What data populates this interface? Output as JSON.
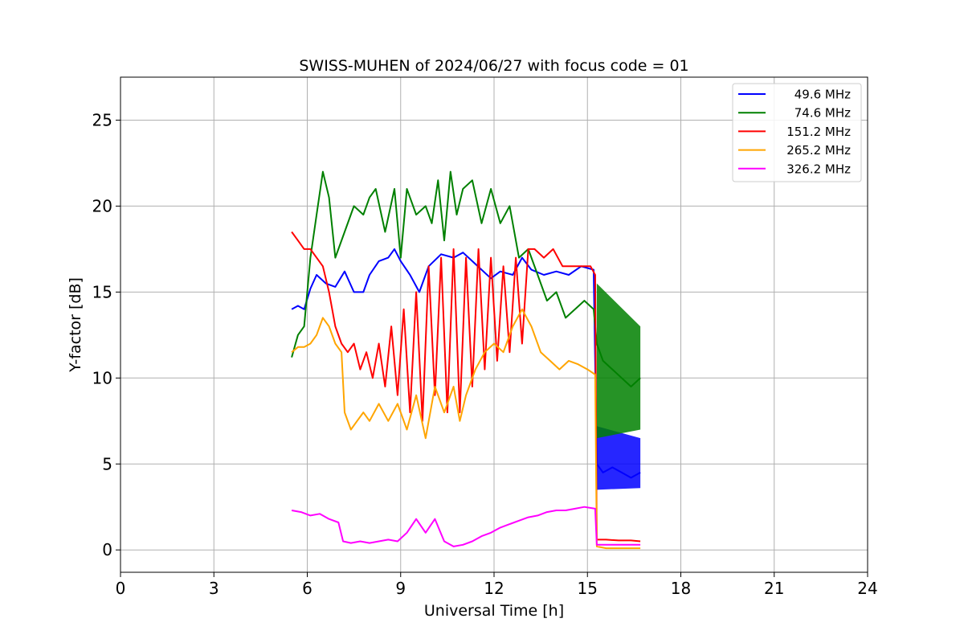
{
  "chart_data": {
    "type": "line",
    "title": "SWISS-MUHEN of 2024/06/27 with focus code = 01",
    "xlabel": "Universal Time [h]",
    "ylabel": "Y-factor [dB]",
    "xlim": [
      0,
      24
    ],
    "ylim": [
      -1.3,
      27.5
    ],
    "xticks": [
      0,
      3,
      6,
      9,
      12,
      15,
      18,
      21,
      24
    ],
    "yticks": [
      0,
      5,
      10,
      15,
      20,
      25
    ],
    "grid": true,
    "legend_position": "top-right",
    "series": [
      {
        "name": "49.6 MHz",
        "color": "#0000ff",
        "points": [
          [
            5.5,
            14.0
          ],
          [
            5.7,
            14.2
          ],
          [
            5.9,
            14.0
          ],
          [
            6.1,
            15.2
          ],
          [
            6.3,
            16.0
          ],
          [
            6.6,
            15.5
          ],
          [
            6.9,
            15.3
          ],
          [
            7.2,
            16.2
          ],
          [
            7.5,
            15.0
          ],
          [
            7.8,
            15.0
          ],
          [
            8.0,
            16.0
          ],
          [
            8.3,
            16.8
          ],
          [
            8.6,
            17.0
          ],
          [
            8.8,
            17.5
          ],
          [
            9.0,
            16.8
          ],
          [
            9.3,
            16.0
          ],
          [
            9.6,
            15.0
          ],
          [
            9.9,
            16.5
          ],
          [
            10.3,
            17.2
          ],
          [
            10.7,
            17.0
          ],
          [
            11.0,
            17.3
          ],
          [
            11.3,
            16.8
          ],
          [
            11.6,
            16.3
          ],
          [
            11.9,
            15.8
          ],
          [
            12.2,
            16.2
          ],
          [
            12.6,
            16.0
          ],
          [
            12.9,
            17.0
          ],
          [
            13.2,
            16.3
          ],
          [
            13.6,
            16.0
          ],
          [
            14.0,
            16.2
          ],
          [
            14.4,
            16.0
          ],
          [
            14.8,
            16.5
          ],
          [
            15.2,
            16.3
          ],
          [
            15.3,
            5.0
          ],
          [
            15.5,
            4.5
          ],
          [
            15.8,
            4.8
          ],
          [
            16.1,
            4.5
          ],
          [
            16.4,
            4.2
          ],
          [
            16.7,
            4.5
          ]
        ],
        "band_bottom": [
          [
            15.3,
            3.5
          ],
          [
            16.7,
            3.6
          ]
        ],
        "band_top": [
          [
            15.3,
            7.2
          ],
          [
            16.7,
            6.5
          ]
        ]
      },
      {
        "name": "74.6 MHz",
        "color": "#008000",
        "points": [
          [
            5.5,
            11.2
          ],
          [
            5.7,
            12.5
          ],
          [
            5.9,
            13.0
          ],
          [
            6.1,
            17.0
          ],
          [
            6.3,
            19.5
          ],
          [
            6.5,
            22.0
          ],
          [
            6.7,
            20.5
          ],
          [
            6.9,
            17.0
          ],
          [
            7.2,
            18.5
          ],
          [
            7.5,
            20.0
          ],
          [
            7.8,
            19.5
          ],
          [
            8.0,
            20.5
          ],
          [
            8.2,
            21.0
          ],
          [
            8.5,
            18.5
          ],
          [
            8.8,
            21.0
          ],
          [
            9.0,
            17.0
          ],
          [
            9.2,
            21.0
          ],
          [
            9.5,
            19.5
          ],
          [
            9.8,
            20.0
          ],
          [
            10.0,
            19.0
          ],
          [
            10.2,
            21.5
          ],
          [
            10.4,
            18.0
          ],
          [
            10.6,
            22.0
          ],
          [
            10.8,
            19.5
          ],
          [
            11.0,
            21.0
          ],
          [
            11.3,
            21.5
          ],
          [
            11.6,
            19.0
          ],
          [
            11.9,
            21.0
          ],
          [
            12.2,
            19.0
          ],
          [
            12.5,
            20.0
          ],
          [
            12.8,
            17.0
          ],
          [
            13.1,
            17.5
          ],
          [
            13.4,
            16.0
          ],
          [
            13.7,
            14.5
          ],
          [
            14.0,
            15.0
          ],
          [
            14.3,
            13.5
          ],
          [
            14.6,
            14.0
          ],
          [
            14.9,
            14.5
          ],
          [
            15.2,
            14.0
          ],
          [
            15.3,
            12.0
          ],
          [
            15.5,
            11.0
          ],
          [
            15.8,
            10.5
          ],
          [
            16.1,
            10.0
          ],
          [
            16.4,
            9.5
          ],
          [
            16.7,
            10.0
          ]
        ],
        "band_bottom": [
          [
            15.3,
            6.5
          ],
          [
            16.7,
            7.0
          ]
        ],
        "band_top": [
          [
            15.3,
            15.5
          ],
          [
            16.7,
            13.0
          ]
        ]
      },
      {
        "name": "151.2 MHz",
        "color": "#ff0000",
        "points": [
          [
            5.5,
            18.5
          ],
          [
            5.7,
            18.0
          ],
          [
            5.9,
            17.5
          ],
          [
            6.1,
            17.5
          ],
          [
            6.3,
            17.0
          ],
          [
            6.5,
            16.5
          ],
          [
            6.7,
            15.0
          ],
          [
            6.9,
            13.0
          ],
          [
            7.1,
            12.0
          ],
          [
            7.3,
            11.5
          ],
          [
            7.5,
            12.0
          ],
          [
            7.7,
            10.5
          ],
          [
            7.9,
            11.5
          ],
          [
            8.1,
            10.0
          ],
          [
            8.3,
            12.0
          ],
          [
            8.5,
            9.5
          ],
          [
            8.7,
            13.0
          ],
          [
            8.9,
            9.0
          ],
          [
            9.1,
            14.0
          ],
          [
            9.3,
            8.0
          ],
          [
            9.5,
            15.0
          ],
          [
            9.7,
            7.5
          ],
          [
            9.9,
            16.5
          ],
          [
            10.1,
            9.0
          ],
          [
            10.3,
            17.0
          ],
          [
            10.5,
            8.0
          ],
          [
            10.7,
            17.5
          ],
          [
            10.9,
            8.0
          ],
          [
            11.1,
            17.0
          ],
          [
            11.3,
            9.5
          ],
          [
            11.5,
            17.5
          ],
          [
            11.7,
            10.5
          ],
          [
            11.9,
            17.0
          ],
          [
            12.1,
            11.0
          ],
          [
            12.3,
            16.5
          ],
          [
            12.5,
            11.5
          ],
          [
            12.7,
            17.0
          ],
          [
            12.9,
            12.0
          ],
          [
            13.1,
            17.5
          ],
          [
            13.3,
            17.5
          ],
          [
            13.6,
            17.0
          ],
          [
            13.9,
            17.5
          ],
          [
            14.2,
            16.5
          ],
          [
            14.5,
            16.5
          ],
          [
            14.8,
            16.5
          ],
          [
            15.1,
            16.5
          ],
          [
            15.25,
            16.0
          ],
          [
            15.3,
            0.6
          ],
          [
            15.6,
            0.6
          ],
          [
            16.0,
            0.55
          ],
          [
            16.4,
            0.55
          ],
          [
            16.7,
            0.5
          ]
        ]
      },
      {
        "name": "265.2 MHz",
        "color": "#ffa500",
        "points": [
          [
            5.5,
            11.5
          ],
          [
            5.7,
            11.8
          ],
          [
            5.9,
            11.8
          ],
          [
            6.1,
            12.0
          ],
          [
            6.3,
            12.5
          ],
          [
            6.5,
            13.5
          ],
          [
            6.7,
            13.0
          ],
          [
            6.9,
            12.0
          ],
          [
            7.1,
            11.5
          ],
          [
            7.2,
            8.0
          ],
          [
            7.4,
            7.0
          ],
          [
            7.6,
            7.5
          ],
          [
            7.8,
            8.0
          ],
          [
            8.0,
            7.5
          ],
          [
            8.3,
            8.5
          ],
          [
            8.6,
            7.5
          ],
          [
            8.9,
            8.5
          ],
          [
            9.2,
            7.0
          ],
          [
            9.5,
            9.0
          ],
          [
            9.8,
            6.5
          ],
          [
            10.1,
            9.5
          ],
          [
            10.4,
            8.0
          ],
          [
            10.7,
            9.5
          ],
          [
            10.9,
            7.5
          ],
          [
            11.1,
            9.0
          ],
          [
            11.4,
            10.5
          ],
          [
            11.7,
            11.5
          ],
          [
            12.0,
            12.0
          ],
          [
            12.3,
            11.5
          ],
          [
            12.6,
            13.0
          ],
          [
            12.9,
            14.0
          ],
          [
            13.2,
            13.0
          ],
          [
            13.5,
            11.5
          ],
          [
            13.8,
            11.0
          ],
          [
            14.1,
            10.5
          ],
          [
            14.4,
            11.0
          ],
          [
            14.7,
            10.8
          ],
          [
            15.0,
            10.5
          ],
          [
            15.25,
            10.2
          ],
          [
            15.3,
            0.2
          ],
          [
            15.6,
            0.1
          ],
          [
            16.0,
            0.1
          ],
          [
            16.4,
            0.1
          ],
          [
            16.7,
            0.1
          ]
        ]
      },
      {
        "name": "326.2 MHz",
        "color": "#ff00ff",
        "points": [
          [
            5.5,
            2.3
          ],
          [
            5.8,
            2.2
          ],
          [
            6.1,
            2.0
          ],
          [
            6.4,
            2.1
          ],
          [
            6.7,
            1.8
          ],
          [
            7.0,
            1.6
          ],
          [
            7.15,
            0.5
          ],
          [
            7.4,
            0.4
          ],
          [
            7.7,
            0.5
          ],
          [
            8.0,
            0.4
          ],
          [
            8.3,
            0.5
          ],
          [
            8.6,
            0.6
          ],
          [
            8.9,
            0.5
          ],
          [
            9.2,
            1.0
          ],
          [
            9.5,
            1.8
          ],
          [
            9.8,
            1.0
          ],
          [
            10.1,
            1.8
          ],
          [
            10.4,
            0.5
          ],
          [
            10.7,
            0.2
          ],
          [
            11.0,
            0.3
          ],
          [
            11.3,
            0.5
          ],
          [
            11.6,
            0.8
          ],
          [
            11.9,
            1.0
          ],
          [
            12.2,
            1.3
          ],
          [
            12.5,
            1.5
          ],
          [
            12.8,
            1.7
          ],
          [
            13.1,
            1.9
          ],
          [
            13.4,
            2.0
          ],
          [
            13.7,
            2.2
          ],
          [
            14.0,
            2.3
          ],
          [
            14.3,
            2.3
          ],
          [
            14.6,
            2.4
          ],
          [
            14.9,
            2.5
          ],
          [
            15.25,
            2.4
          ],
          [
            15.3,
            0.3
          ],
          [
            15.6,
            0.3
          ],
          [
            16.0,
            0.3
          ],
          [
            16.4,
            0.3
          ],
          [
            16.7,
            0.3
          ]
        ]
      }
    ]
  }
}
